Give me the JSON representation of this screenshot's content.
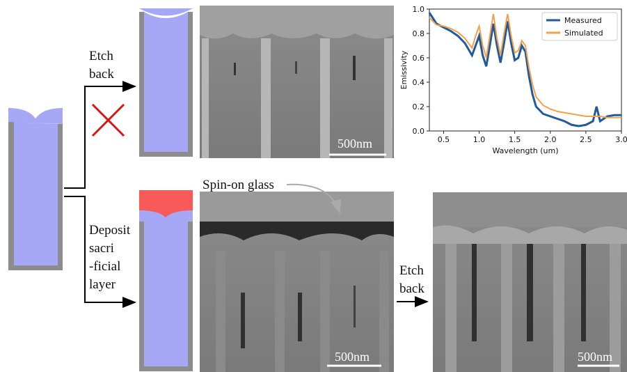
{
  "steps": [
    {
      "lines": [
        "Etch",
        "back"
      ]
    },
    {
      "lines": [
        "Deposit",
        "sacri",
        "-ficial",
        "layer"
      ]
    },
    {
      "lines": [
        "Etch",
        "back"
      ]
    }
  ],
  "annotation": "Spin-on glass",
  "scale_bars": [
    "500nm",
    "500nm",
    "500nm"
  ],
  "chart_data": {
    "type": "line",
    "x_label": "Wavelength (um)",
    "y_label": "Emissivity",
    "x": [
      0.3,
      0.4,
      0.5,
      0.6,
      0.7,
      0.8,
      0.9,
      0.95,
      1.0,
      1.05,
      1.1,
      1.15,
      1.2,
      1.25,
      1.3,
      1.35,
      1.4,
      1.45,
      1.5,
      1.55,
      1.6,
      1.65,
      1.7,
      1.75,
      1.8,
      1.9,
      2.0,
      2.1,
      2.2,
      2.3,
      2.4,
      2.5,
      2.6,
      2.65,
      2.7,
      2.8,
      2.9,
      3.0
    ],
    "series": [
      {
        "name": "Measured",
        "color": "#1f5a9a",
        "values": [
          0.97,
          0.88,
          0.85,
          0.82,
          0.78,
          0.72,
          0.62,
          0.7,
          0.78,
          0.62,
          0.53,
          0.7,
          0.88,
          0.7,
          0.56,
          0.72,
          0.9,
          0.72,
          0.58,
          0.6,
          0.7,
          0.65,
          0.45,
          0.3,
          0.2,
          0.14,
          0.12,
          0.1,
          0.08,
          0.05,
          0.04,
          0.05,
          0.08,
          0.2,
          0.08,
          0.12,
          0.13,
          0.13
        ]
      },
      {
        "name": "Simulated",
        "color": "#f5a04a",
        "values": [
          0.93,
          0.87,
          0.86,
          0.84,
          0.81,
          0.76,
          0.68,
          0.78,
          0.86,
          0.7,
          0.6,
          0.78,
          0.96,
          0.76,
          0.62,
          0.8,
          0.96,
          0.78,
          0.64,
          0.66,
          0.74,
          0.7,
          0.52,
          0.38,
          0.28,
          0.21,
          0.18,
          0.16,
          0.15,
          0.14,
          0.13,
          0.12,
          0.12,
          0.12,
          0.12,
          0.11,
          0.11,
          0.11
        ]
      }
    ],
    "xlim": [
      0.3,
      3.0
    ],
    "ylim": [
      0,
      1
    ],
    "xticks": [
      0.5,
      {
        "value": 1,
        "label": "1.0"
      },
      1.5,
      {
        "value": 2,
        "label": "2.0"
      },
      2.5,
      {
        "value": 3,
        "label": "3.0"
      }
    ],
    "yticks": [
      {
        "value": 0,
        "label": "0.0"
      },
      0.2,
      0.4,
      0.6,
      0.8,
      {
        "value": 1,
        "label": "1.0"
      }
    ],
    "legend": "upper right"
  }
}
